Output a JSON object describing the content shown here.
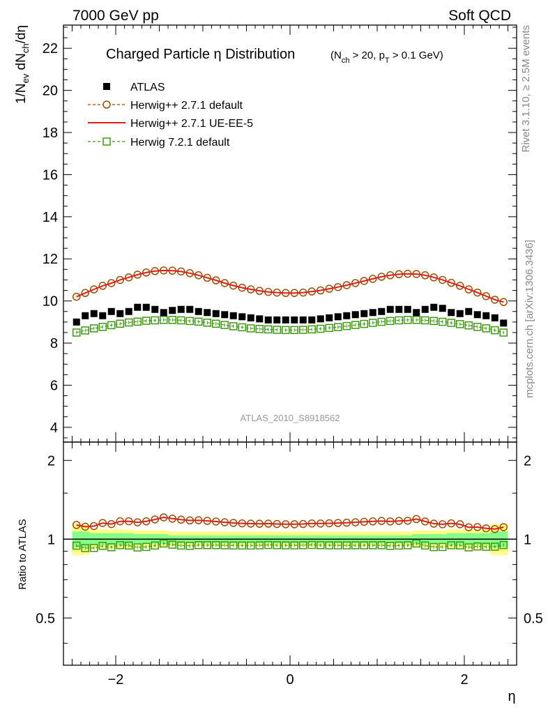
{
  "header": {
    "left": "7000 GeV pp",
    "right": "Soft QCD"
  },
  "side_text": {
    "rivet": "Rivet 3.1.10, ≥ 2.5M events",
    "mcplots": "mcplots.cern.ch [arXiv:1306.3436]"
  },
  "chart_data": {
    "type": "scatter",
    "title": "Charged Particle η Distribution",
    "title_sub": "(N_ch > 20, p_T > 0.1 GeV)",
    "watermark": "ATLAS_2010_S8918562",
    "xlabel": "η",
    "ylabel": "1/N_ev dN_ch/dη",
    "ratio_ylabel": "Ratio to ATLAS",
    "xlim": [
      -2.6,
      2.6
    ],
    "ylim": [
      3.3,
      23.1
    ],
    "ratio_ylim": [
      0.33,
      2.35
    ],
    "ratio_log": true,
    "xticks": [
      "−2",
      "0",
      "2"
    ],
    "yticks": [
      "4",
      "6",
      "8",
      "10",
      "12",
      "14",
      "16",
      "18",
      "20",
      "22"
    ],
    "ratio_yticks": [
      "0.5",
      "1",
      "2"
    ],
    "legend_position": "top-left",
    "colors": {
      "data": "#000000",
      "default": "#9a4e00",
      "ue": "#e41a1c",
      "h7": "#3c9a0f",
      "band_outer": "#ffff88",
      "band_inner": "#88ff88"
    },
    "x": [
      -2.45,
      -2.35,
      -2.25,
      -2.15,
      -2.05,
      -1.95,
      -1.85,
      -1.75,
      -1.65,
      -1.55,
      -1.45,
      -1.35,
      -1.25,
      -1.15,
      -1.05,
      -0.95,
      -0.85,
      -0.75,
      -0.65,
      -0.55,
      -0.45,
      -0.35,
      -0.25,
      -0.15,
      -0.05,
      0.05,
      0.15,
      0.25,
      0.35,
      0.45,
      0.55,
      0.65,
      0.75,
      0.85,
      0.95,
      1.05,
      1.15,
      1.25,
      1.35,
      1.45,
      1.55,
      1.65,
      1.75,
      1.85,
      1.95,
      2.05,
      2.15,
      2.25,
      2.35,
      2.45
    ],
    "series": [
      {
        "name": "ATLAS",
        "style": "data",
        "values": [
          9.0,
          9.3,
          9.4,
          9.3,
          9.5,
          9.4,
          9.5,
          9.7,
          9.7,
          9.6,
          9.45,
          9.55,
          9.6,
          9.6,
          9.5,
          9.45,
          9.4,
          9.35,
          9.3,
          9.25,
          9.2,
          9.15,
          9.1,
          9.1,
          9.1,
          9.1,
          9.1,
          9.1,
          9.15,
          9.2,
          9.25,
          9.3,
          9.35,
          9.4,
          9.45,
          9.5,
          9.6,
          9.6,
          9.6,
          9.45,
          9.6,
          9.7,
          9.65,
          9.45,
          9.4,
          9.5,
          9.35,
          9.3,
          9.2,
          8.95
        ]
      },
      {
        "name": "Herwig++ 2.7.1 default",
        "style": "default",
        "values": [
          10.2,
          10.38,
          10.55,
          10.72,
          10.85,
          11.0,
          11.12,
          11.25,
          11.35,
          11.42,
          11.45,
          11.44,
          11.4,
          11.32,
          11.22,
          11.1,
          10.98,
          10.85,
          10.73,
          10.63,
          10.55,
          10.48,
          10.43,
          10.4,
          10.38,
          10.38,
          10.4,
          10.45,
          10.5,
          10.58,
          10.66,
          10.75,
          10.85,
          10.95,
          11.05,
          11.15,
          11.22,
          11.27,
          11.29,
          11.28,
          11.22,
          11.12,
          11.0,
          10.86,
          10.72,
          10.55,
          10.4,
          10.23,
          10.06,
          9.95
        ]
      },
      {
        "name": "Herwig++ 2.7.1 UE-EE-5",
        "style": "ue",
        "values": [
          10.2,
          10.38,
          10.55,
          10.72,
          10.85,
          11.0,
          11.12,
          11.25,
          11.35,
          11.42,
          11.45,
          11.44,
          11.4,
          11.32,
          11.22,
          11.1,
          10.98,
          10.85,
          10.73,
          10.63,
          10.55,
          10.48,
          10.43,
          10.4,
          10.38,
          10.38,
          10.4,
          10.45,
          10.5,
          10.58,
          10.66,
          10.75,
          10.85,
          10.95,
          11.05,
          11.15,
          11.22,
          11.27,
          11.29,
          11.28,
          11.22,
          11.12,
          11.0,
          10.86,
          10.72,
          10.55,
          10.4,
          10.23,
          10.06,
          9.95
        ]
      },
      {
        "name": "Herwig 7.2.1 default",
        "style": "h7",
        "values": [
          8.5,
          8.6,
          8.7,
          8.77,
          8.85,
          8.92,
          8.98,
          9.02,
          9.06,
          9.08,
          9.1,
          9.1,
          9.08,
          9.05,
          9.02,
          8.97,
          8.92,
          8.86,
          8.8,
          8.75,
          8.7,
          8.67,
          8.65,
          8.63,
          8.62,
          8.62,
          8.63,
          8.65,
          8.68,
          8.72,
          8.76,
          8.81,
          8.86,
          8.91,
          8.96,
          9.01,
          9.05,
          9.08,
          9.1,
          9.1,
          9.08,
          9.05,
          9.01,
          8.96,
          8.9,
          8.84,
          8.77,
          8.7,
          8.61,
          8.5
        ]
      }
    ],
    "ratio_band": {
      "outer_lo": [
        0.87,
        0.87,
        0.92,
        0.92,
        0.92,
        0.92,
        0.92,
        0.93,
        0.93,
        0.93,
        0.93,
        0.94,
        0.94,
        0.94,
        0.94,
        0.94,
        0.94,
        0.94,
        0.94,
        0.94,
        0.94,
        0.94,
        0.94,
        0.94,
        0.94,
        0.94,
        0.94,
        0.94,
        0.94,
        0.94,
        0.94,
        0.94,
        0.94,
        0.94,
        0.94,
        0.94,
        0.94,
        0.94,
        0.94,
        0.93,
        0.93,
        0.93,
        0.93,
        0.92,
        0.92,
        0.92,
        0.92,
        0.92,
        0.87,
        0.87
      ],
      "outer_hi": [
        1.14,
        1.14,
        1.09,
        1.09,
        1.09,
        1.09,
        1.09,
        1.08,
        1.08,
        1.08,
        1.08,
        1.07,
        1.07,
        1.07,
        1.07,
        1.07,
        1.07,
        1.07,
        1.07,
        1.07,
        1.07,
        1.07,
        1.07,
        1.07,
        1.07,
        1.07,
        1.07,
        1.07,
        1.07,
        1.07,
        1.07,
        1.07,
        1.07,
        1.07,
        1.07,
        1.07,
        1.07,
        1.07,
        1.07,
        1.08,
        1.08,
        1.08,
        1.08,
        1.09,
        1.09,
        1.09,
        1.09,
        1.09,
        1.14,
        1.14
      ],
      "inner_lo": [
        0.93,
        0.93,
        0.95,
        0.95,
        0.95,
        0.95,
        0.95,
        0.96,
        0.96,
        0.96,
        0.96,
        0.965,
        0.965,
        0.965,
        0.965,
        0.965,
        0.965,
        0.965,
        0.965,
        0.965,
        0.965,
        0.965,
        0.965,
        0.965,
        0.965,
        0.965,
        0.965,
        0.965,
        0.965,
        0.965,
        0.965,
        0.965,
        0.965,
        0.965,
        0.965,
        0.965,
        0.965,
        0.965,
        0.965,
        0.96,
        0.96,
        0.96,
        0.96,
        0.95,
        0.95,
        0.95,
        0.95,
        0.95,
        0.93,
        0.93
      ],
      "inner_hi": [
        1.07,
        1.07,
        1.055,
        1.055,
        1.055,
        1.055,
        1.055,
        1.045,
        1.045,
        1.045,
        1.045,
        1.035,
        1.035,
        1.035,
        1.035,
        1.035,
        1.035,
        1.035,
        1.035,
        1.035,
        1.035,
        1.035,
        1.035,
        1.035,
        1.035,
        1.035,
        1.035,
        1.035,
        1.035,
        1.035,
        1.035,
        1.035,
        1.035,
        1.035,
        1.035,
        1.035,
        1.035,
        1.035,
        1.035,
        1.045,
        1.045,
        1.045,
        1.045,
        1.055,
        1.055,
        1.055,
        1.055,
        1.055,
        1.07,
        1.07
      ]
    }
  }
}
